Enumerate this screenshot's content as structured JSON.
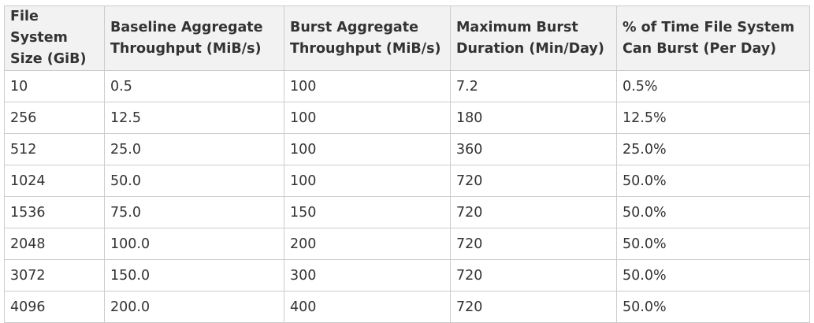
{
  "table": {
    "headers": [
      [
        "File System",
        "Size (GiB)"
      ],
      [
        "Baseline Aggregate",
        "Throughput (MiB/s)"
      ],
      [
        "Burst Aggregate",
        "Throughput (MiB/s)"
      ],
      [
        "Maximum Burst",
        "Duration (Min/Day)"
      ],
      [
        "% of Time File System",
        "Can Burst (Per Day)"
      ]
    ],
    "rows": [
      [
        "10",
        "0.5",
        "100",
        "7.2",
        "0.5%"
      ],
      [
        "256",
        "12.5",
        "100",
        "180",
        "12.5%"
      ],
      [
        "512",
        "25.0",
        "100",
        "360",
        "25.0%"
      ],
      [
        "1024",
        "50.0",
        "100",
        "720",
        "50.0%"
      ],
      [
        "1536",
        "75.0",
        "150",
        "720",
        "50.0%"
      ],
      [
        "2048",
        "100.0",
        "200",
        "720",
        "50.0%"
      ],
      [
        "3072",
        "150.0",
        "300",
        "720",
        "50.0%"
      ],
      [
        "4096",
        "200.0",
        "400",
        "720",
        "50.0%"
      ]
    ]
  }
}
